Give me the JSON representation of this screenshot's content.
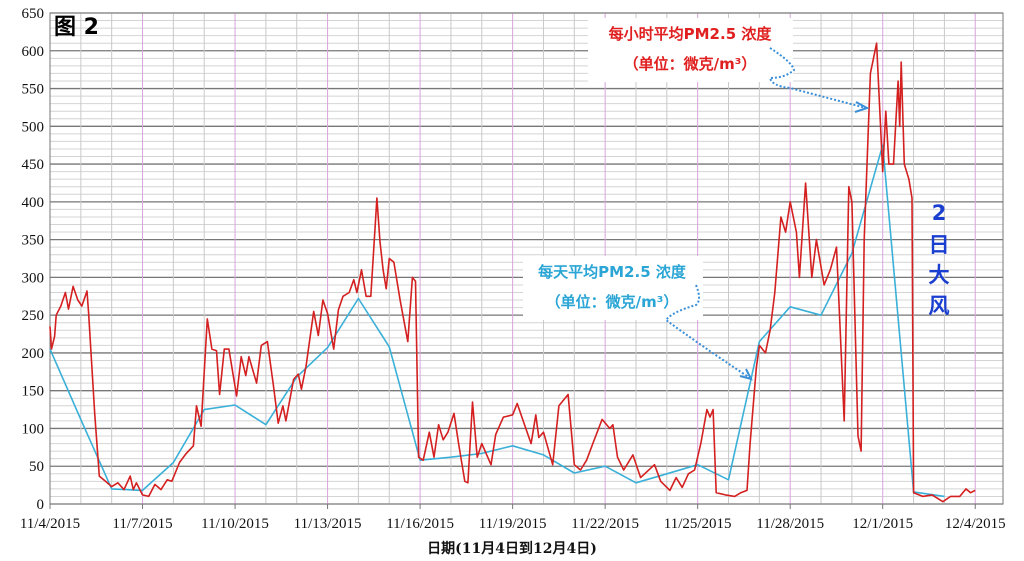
{
  "chart_data": {
    "type": "line",
    "figure_label": "图 2",
    "xlabel": "日期(11月4日到12月4日)",
    "ylabel": "",
    "ylim": [
      0,
      650
    ],
    "yticks": [
      0,
      50,
      100,
      150,
      200,
      250,
      300,
      350,
      400,
      450,
      500,
      550,
      600,
      650
    ],
    "x_unit": "days since 11/4/2015",
    "xlim": [
      0,
      30.9
    ],
    "xticks": [
      {
        "day": 0,
        "label": "11/4/2015"
      },
      {
        "day": 3,
        "label": "11/7/2015"
      },
      {
        "day": 6,
        "label": "11/10/2015"
      },
      {
        "day": 9,
        "label": "11/13/2015"
      },
      {
        "day": 12,
        "label": "11/16/2015"
      },
      {
        "day": 15,
        "label": "11/19/2015"
      },
      {
        "day": 18,
        "label": "11/22/2015"
      },
      {
        "day": 21,
        "label": "11/25/2015"
      },
      {
        "day": 24,
        "label": "11/28/2015"
      },
      {
        "day": 27,
        "label": "12/1/2015"
      },
      {
        "day": 30,
        "label": "12/4/2015"
      }
    ],
    "grid": true,
    "series": [
      {
        "name": "每小时平均PM2.5 浓度",
        "color": "#d42020",
        "points": [
          [
            0,
            235
          ],
          [
            0.05,
            205
          ],
          [
            0.15,
            222
          ],
          [
            0.2,
            250
          ],
          [
            0.35,
            262
          ],
          [
            0.5,
            280
          ],
          [
            0.6,
            258
          ],
          [
            0.75,
            288
          ],
          [
            0.9,
            270
          ],
          [
            1.03,
            262
          ],
          [
            1.2,
            282
          ],
          [
            1.25,
            253
          ],
          [
            1.45,
            120
          ],
          [
            1.6,
            37
          ],
          [
            1.8,
            30
          ],
          [
            2.0,
            23
          ],
          [
            2.2,
            28
          ],
          [
            2.4,
            19
          ],
          [
            2.6,
            37
          ],
          [
            2.7,
            19
          ],
          [
            2.8,
            28
          ],
          [
            3.0,
            12
          ],
          [
            3.2,
            10
          ],
          [
            3.4,
            26
          ],
          [
            3.6,
            19
          ],
          [
            3.8,
            32
          ],
          [
            3.95,
            30
          ],
          [
            4.2,
            55
          ],
          [
            4.4,
            66
          ],
          [
            4.65,
            77
          ],
          [
            4.75,
            130
          ],
          [
            4.9,
            103
          ],
          [
            5.1,
            245
          ],
          [
            5.25,
            205
          ],
          [
            5.4,
            203
          ],
          [
            5.5,
            145
          ],
          [
            5.65,
            205
          ],
          [
            5.8,
            205
          ],
          [
            6.05,
            143
          ],
          [
            6.2,
            195
          ],
          [
            6.35,
            170
          ],
          [
            6.45,
            195
          ],
          [
            6.7,
            160
          ],
          [
            6.85,
            210
          ],
          [
            7.05,
            215
          ],
          [
            7.25,
            155
          ],
          [
            7.4,
            107
          ],
          [
            7.55,
            130
          ],
          [
            7.65,
            110
          ],
          [
            7.9,
            165
          ],
          [
            8.05,
            172
          ],
          [
            8.15,
            152
          ],
          [
            8.3,
            182
          ],
          [
            8.55,
            255
          ],
          [
            8.7,
            223
          ],
          [
            8.85,
            270
          ],
          [
            9.0,
            252
          ],
          [
            9.2,
            205
          ],
          [
            9.35,
            257
          ],
          [
            9.5,
            275
          ],
          [
            9.7,
            280
          ],
          [
            9.85,
            297
          ],
          [
            9.95,
            280
          ],
          [
            10.1,
            310
          ],
          [
            10.25,
            275
          ],
          [
            10.4,
            275
          ],
          [
            10.6,
            405
          ],
          [
            10.7,
            347
          ],
          [
            10.8,
            310
          ],
          [
            10.9,
            285
          ],
          [
            11.0,
            325
          ],
          [
            11.15,
            320
          ],
          [
            11.35,
            270
          ],
          [
            11.6,
            215
          ],
          [
            11.75,
            300
          ],
          [
            11.85,
            295
          ],
          [
            11.95,
            62
          ],
          [
            12.1,
            58
          ],
          [
            12.3,
            95
          ],
          [
            12.45,
            62
          ],
          [
            12.6,
            105
          ],
          [
            12.75,
            85
          ],
          [
            12.9,
            95
          ],
          [
            13.1,
            120
          ],
          [
            13.25,
            80
          ],
          [
            13.45,
            30
          ],
          [
            13.55,
            28
          ],
          [
            13.7,
            135
          ],
          [
            13.85,
            62
          ],
          [
            14.0,
            80
          ],
          [
            14.3,
            52
          ],
          [
            14.45,
            92
          ],
          [
            14.7,
            115
          ],
          [
            15.0,
            118
          ],
          [
            15.15,
            133
          ],
          [
            15.3,
            115
          ],
          [
            15.6,
            80
          ],
          [
            15.75,
            118
          ],
          [
            15.85,
            88
          ],
          [
            16.0,
            95
          ],
          [
            16.3,
            52
          ],
          [
            16.5,
            130
          ],
          [
            16.8,
            145
          ],
          [
            17.0,
            52
          ],
          [
            17.2,
            45
          ],
          [
            17.4,
            58
          ],
          [
            17.6,
            80
          ],
          [
            17.9,
            112
          ],
          [
            18.15,
            100
          ],
          [
            18.25,
            105
          ],
          [
            18.4,
            62
          ],
          [
            18.6,
            45
          ],
          [
            18.9,
            65
          ],
          [
            19.15,
            35
          ],
          [
            19.6,
            52
          ],
          [
            19.8,
            30
          ],
          [
            20.1,
            18
          ],
          [
            20.3,
            35
          ],
          [
            20.5,
            22
          ],
          [
            20.7,
            40
          ],
          [
            20.9,
            45
          ],
          [
            21.1,
            80
          ],
          [
            21.3,
            125
          ],
          [
            21.4,
            115
          ],
          [
            21.5,
            125
          ],
          [
            21.6,
            15
          ],
          [
            21.9,
            12
          ],
          [
            22.2,
            10
          ],
          [
            22.4,
            15
          ],
          [
            22.6,
            18
          ],
          [
            22.7,
            80
          ],
          [
            22.9,
            180
          ],
          [
            23.0,
            210
          ],
          [
            23.2,
            200
          ],
          [
            23.35,
            230
          ],
          [
            23.5,
            280
          ],
          [
            23.7,
            380
          ],
          [
            23.85,
            360
          ],
          [
            24.0,
            400
          ],
          [
            24.2,
            360
          ],
          [
            24.3,
            300
          ],
          [
            24.5,
            425
          ],
          [
            24.7,
            300
          ],
          [
            24.85,
            350
          ],
          [
            25.1,
            290
          ],
          [
            25.3,
            310
          ],
          [
            25.5,
            340
          ],
          [
            25.75,
            110
          ],
          [
            25.9,
            420
          ],
          [
            26.0,
            400
          ],
          [
            26.2,
            90
          ],
          [
            26.3,
            70
          ],
          [
            26.4,
            350
          ],
          [
            26.6,
            570
          ],
          [
            26.8,
            610
          ],
          [
            27.0,
            440
          ],
          [
            27.1,
            520
          ],
          [
            27.2,
            450
          ],
          [
            27.35,
            450
          ],
          [
            27.5,
            560
          ],
          [
            27.55,
            500
          ],
          [
            27.6,
            585
          ],
          [
            27.7,
            450
          ],
          [
            27.85,
            430
          ],
          [
            27.95,
            405
          ],
          [
            28.0,
            15
          ],
          [
            28.3,
            10
          ],
          [
            28.6,
            12
          ],
          [
            28.95,
            3
          ],
          [
            29.2,
            10
          ],
          [
            29.5,
            10
          ],
          [
            29.7,
            20
          ],
          [
            29.85,
            15
          ],
          [
            30.0,
            18
          ]
        ]
      },
      {
        "name": "每天平均PM2.5 浓度",
        "color": "#3ab0d8",
        "points": [
          [
            0,
            205
          ],
          [
            1,
            112
          ],
          [
            2,
            20
          ],
          [
            3,
            18
          ],
          [
            4,
            55
          ],
          [
            5,
            125
          ],
          [
            6,
            131
          ],
          [
            7,
            105
          ],
          [
            8,
            168
          ],
          [
            9,
            207
          ],
          [
            10,
            272
          ],
          [
            11,
            208
          ],
          [
            12,
            58
          ],
          [
            13,
            62
          ],
          [
            14,
            67
          ],
          [
            15,
            77
          ],
          [
            16,
            65
          ],
          [
            17,
            41
          ],
          [
            18,
            50
          ],
          [
            19,
            28
          ],
          [
            20,
            40
          ],
          [
            21,
            52
          ],
          [
            22,
            32
          ],
          [
            23,
            215
          ],
          [
            24,
            261
          ],
          [
            25,
            250
          ],
          [
            26,
            332
          ],
          [
            27,
            475
          ],
          [
            28,
            16
          ],
          [
            29,
            10
          ]
        ]
      }
    ],
    "annotations": {
      "hourly_line1": "每小时平均PM2.5 浓度",
      "hourly_line2": "（单位：微克/m³）",
      "daily_line1": "每天平均PM2.5 浓度",
      "daily_line2": "（单位：微克/m³）",
      "wind_chars": [
        "2",
        "日",
        "大",
        "风"
      ]
    },
    "legend": "none"
  }
}
